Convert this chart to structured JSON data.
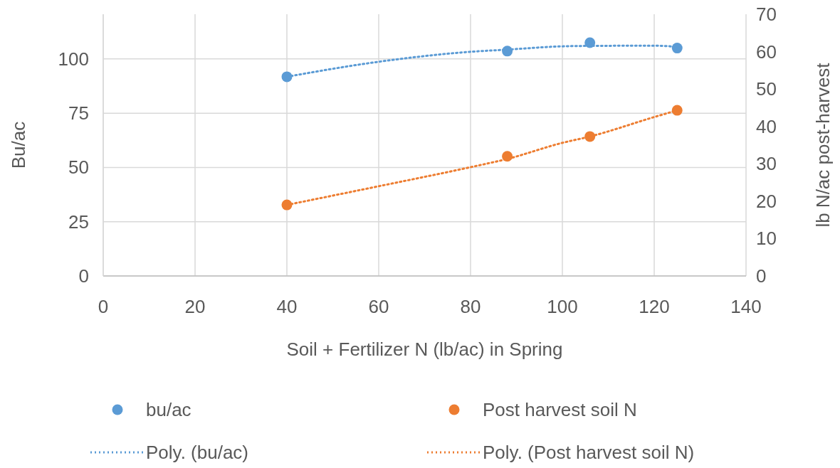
{
  "chart_data": {
    "type": "scatter",
    "xlabel": "Soil + Fertilizer N (lb/ac) in Spring",
    "ylabel": "Bu/ac",
    "y2label": "lb N/ac post-harvest",
    "xlim": [
      0,
      140
    ],
    "xticks": [
      0,
      20,
      40,
      60,
      80,
      100,
      120,
      140
    ],
    "ylim": [
      0,
      120.6
    ],
    "yticks": [
      0,
      25,
      50,
      75,
      100
    ],
    "y2lim": [
      0,
      70
    ],
    "y2ticks": [
      0,
      10,
      20,
      30,
      40,
      50,
      60,
      70
    ],
    "grid": true,
    "legend": "bottom",
    "marker": "circle",
    "series": [
      {
        "name": "bu/ac",
        "color": "#5b9bd5",
        "x": [
          40,
          88,
          106,
          125
        ],
        "values": [
          91.8,
          103.6,
          107.5,
          105.0
        ]
      },
      {
        "name": "Post harvest soil N",
        "axis": "y2",
        "color": "#ed7d31",
        "x": [
          40,
          88,
          106,
          125
        ],
        "values": [
          19.0,
          32.0,
          37.3,
          44.3
        ]
      },
      {
        "name": "Poly. (bu/ac)",
        "type": "line",
        "line_style": "dotted",
        "marker": "none",
        "color": "#5b9bd5",
        "x": [
          40,
          60,
          80,
          88,
          100,
          106,
          120,
          125
        ],
        "values": [
          91.8,
          98.7,
          103.3,
          104.3,
          105.8,
          106.0,
          106.1,
          105.6
        ]
      },
      {
        "name": "Poly. (Post harvest soil N)",
        "type": "line",
        "axis": "y2",
        "line_style": "dotted",
        "marker": "none",
        "color": "#ed7d31",
        "x": [
          40,
          60,
          80,
          88,
          100,
          106,
          120,
          125
        ],
        "values": [
          19.0,
          24.0,
          29.1,
          31.3,
          35.6,
          37.3,
          42.5,
          44.3
        ]
      }
    ]
  }
}
